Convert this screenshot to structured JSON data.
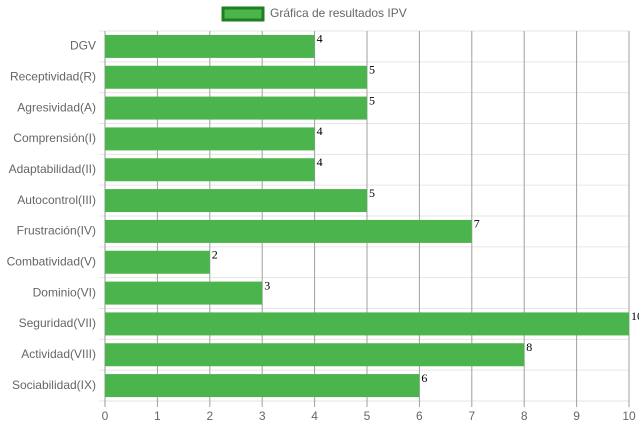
{
  "chart_data": {
    "type": "hbar",
    "categories": [
      "DGV",
      "Receptividad(R)",
      "Agresividad(A)",
      "Comprensión(I)",
      "Adaptabilidad(II)",
      "Autocontrol(III)",
      "Frustración(IV)",
      "Combatividad(V)",
      "Dominio(VI)",
      "Seguridad(VII)",
      "Actividad(VIII)",
      "Sociabilidad(IX)"
    ],
    "series": [
      {
        "name": "Gráfica de resultados IPV",
        "color": "#4cb44c",
        "border_color": "#1f7f1f",
        "values": [
          4,
          5,
          5,
          4,
          4,
          5,
          7,
          2,
          3,
          10,
          8,
          6
        ]
      }
    ],
    "xlim": [
      0,
      10
    ],
    "xticks": [
      0,
      1,
      2,
      3,
      4,
      5,
      6,
      7,
      8,
      9,
      10
    ],
    "grid": true,
    "legend": "top"
  }
}
